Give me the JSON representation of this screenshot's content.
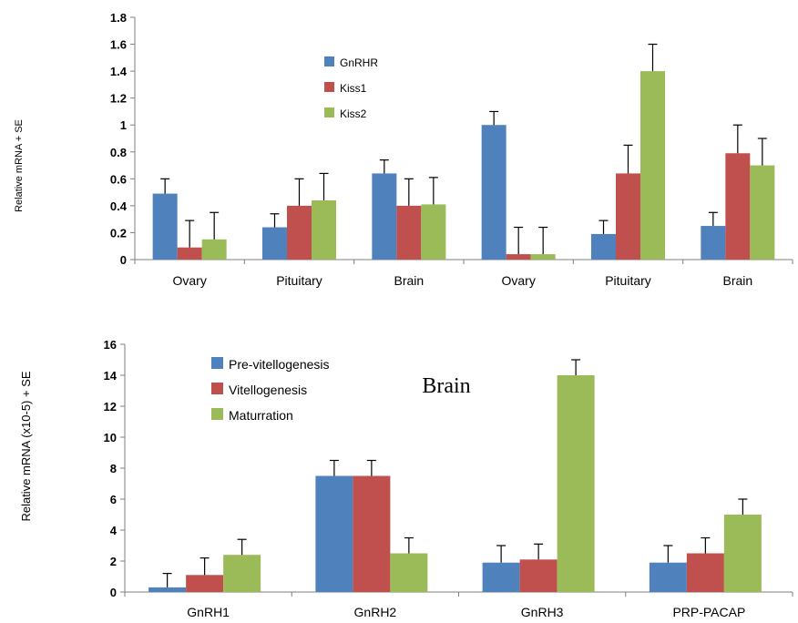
{
  "chart_data": [
    {
      "type": "bar",
      "title": "",
      "xlabel": "",
      "ylabel": "Relative mRNA + SE",
      "ylim": [
        0,
        1.8
      ],
      "yticks": [
        "0",
        "0.2",
        "0.4",
        "0.6",
        "0.8",
        "1",
        "1.2",
        "1.4",
        "1.6",
        "1.8"
      ],
      "categories": [
        "Ovary",
        "Pituitary",
        "Brain",
        "Ovary",
        "Pituitary",
        "Brain"
      ],
      "legend_position": "top-center",
      "grid": false,
      "series": [
        {
          "name": "GnRHR",
          "color": "#4f81bd",
          "values": [
            0.49,
            0.24,
            0.64,
            1.0,
            0.19,
            0.25
          ],
          "errors": [
            0.11,
            0.1,
            0.1,
            0.1,
            0.1,
            0.1
          ]
        },
        {
          "name": "Kiss1",
          "color": "#c0504d",
          "values": [
            0.09,
            0.4,
            0.4,
            0.04,
            0.64,
            0.79
          ],
          "errors": [
            0.2,
            0.2,
            0.2,
            0.2,
            0.21,
            0.21
          ]
        },
        {
          "name": "Kiss2",
          "color": "#9bbb59",
          "values": [
            0.15,
            0.44,
            0.41,
            0.04,
            1.4,
            0.7
          ],
          "errors": [
            0.2,
            0.2,
            0.2,
            0.2,
            0.2,
            0.2
          ]
        }
      ]
    },
    {
      "type": "bar",
      "title": "",
      "xlabel": "",
      "ylabel": "Relative mRNA (x10-5) + SE",
      "ylim": [
        0,
        16
      ],
      "yticks": [
        "0",
        "2",
        "4",
        "6",
        "8",
        "10",
        "12",
        "14",
        "16"
      ],
      "categories": [
        "GnRH1",
        "GnRH2",
        "GnRH3",
        "PRP-PACAP"
      ],
      "annotation": "Brain",
      "legend_position": "top-left",
      "grid": false,
      "series": [
        {
          "name": "Pre-vitellogenesis",
          "color": "#4f81bd",
          "values": [
            0.3,
            7.5,
            1.9,
            1.9
          ],
          "errors": [
            0.9,
            1.0,
            1.1,
            1.1
          ]
        },
        {
          "name": "Vitellogenesis",
          "color": "#c0504d",
          "values": [
            1.1,
            7.5,
            2.1,
            2.5
          ],
          "errors": [
            1.1,
            1.0,
            1.0,
            1.0
          ]
        },
        {
          "name": "Maturration",
          "color": "#9bbb59",
          "values": [
            2.4,
            2.5,
            14.0,
            5.0
          ],
          "errors": [
            1.0,
            1.0,
            1.0,
            1.0
          ]
        }
      ]
    }
  ]
}
